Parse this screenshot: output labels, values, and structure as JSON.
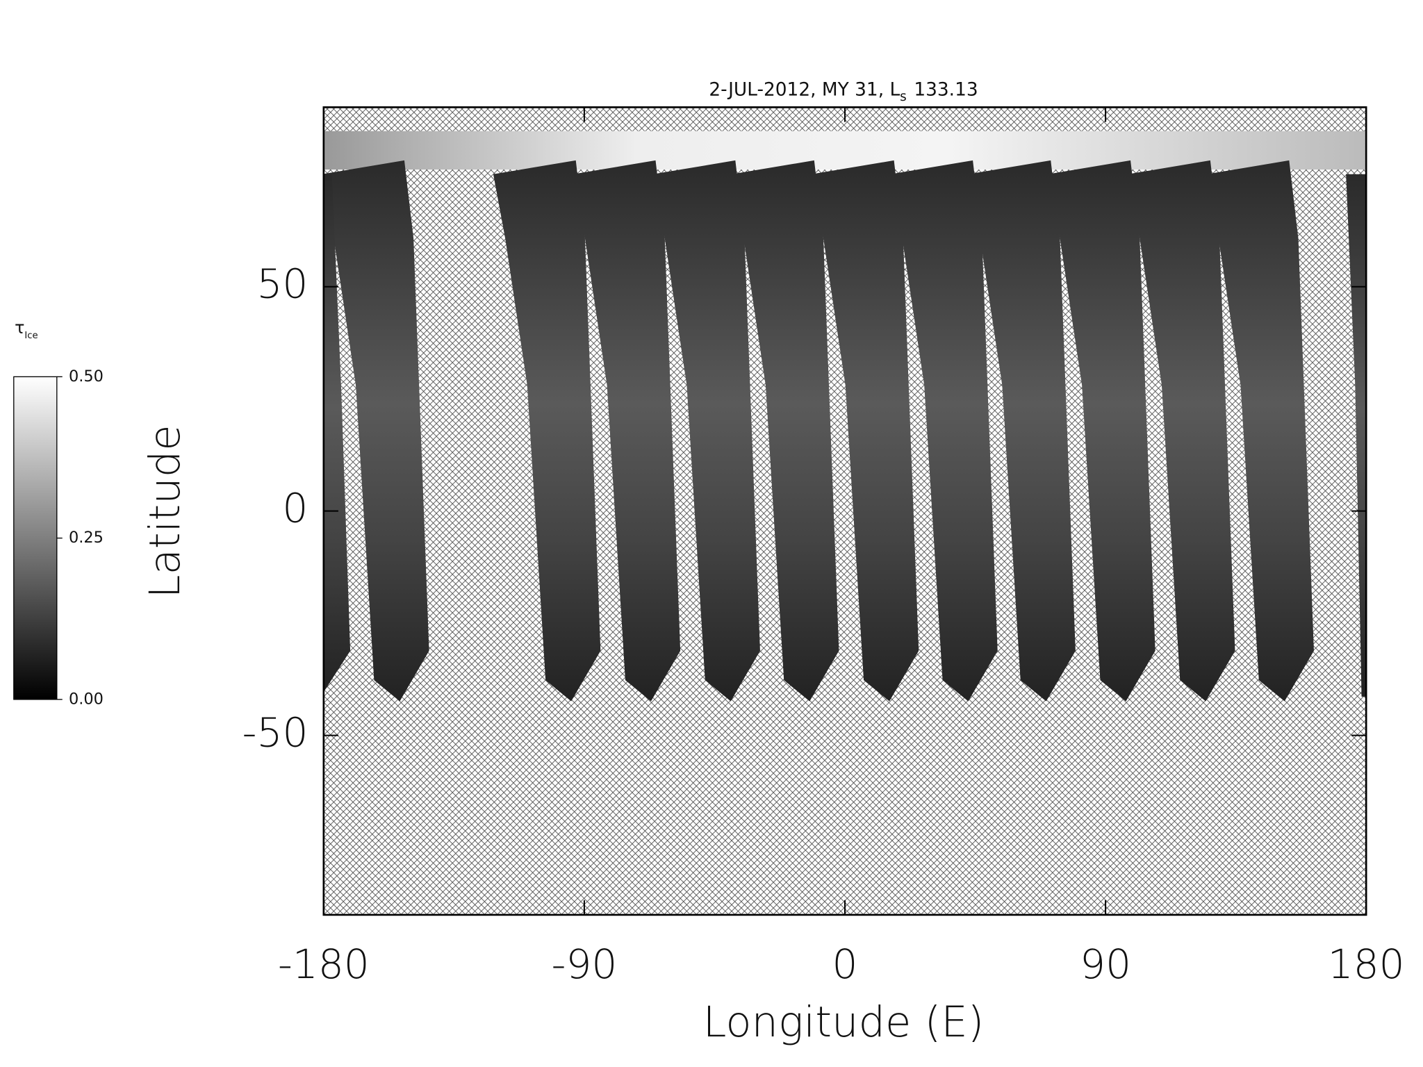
{
  "chart_data": {
    "type": "map",
    "title": "2-JUL-2012, MY 31,  L",
    "title_subscript": "s",
    "title_suffix": "133.13",
    "xlabel": "Longitude (E)",
    "ylabel": "Latitude",
    "xlim": [
      -180,
      180
    ],
    "xticks": [
      -180,
      -90,
      0,
      90,
      180
    ],
    "ylim": [
      -90,
      90
    ],
    "yticks": [
      -50,
      0,
      50
    ],
    "colorbar": {
      "label": "τ",
      "label_subscript": "Ice",
      "clim": [
        0,
        0.5
      ],
      "ticks": [
        {
          "value": 0.5,
          "label": "0.50"
        },
        {
          "value": 0.25,
          "label": "0.25"
        },
        {
          "value": 0,
          "label": "0.00"
        }
      ]
    }
  }
}
